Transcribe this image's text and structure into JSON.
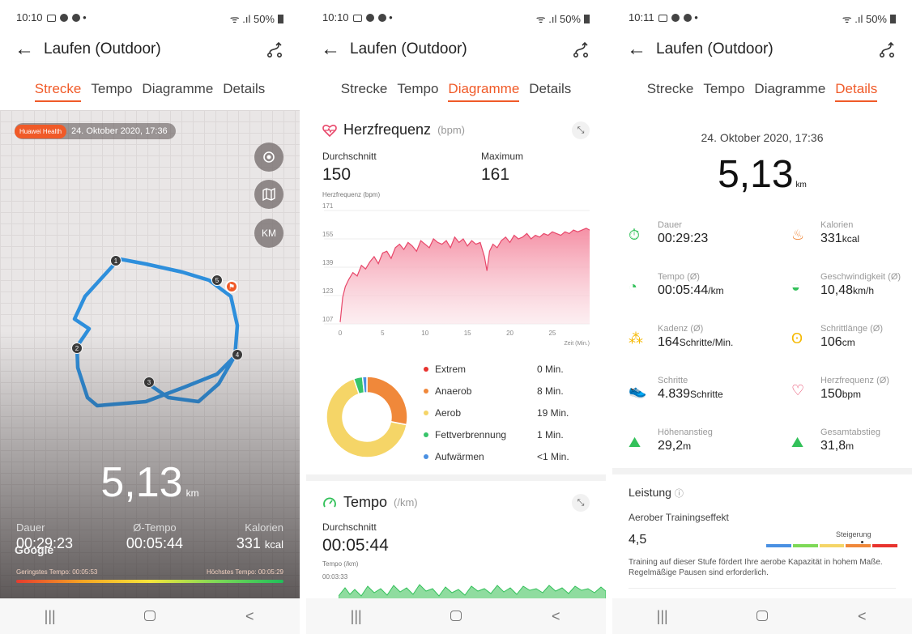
{
  "status": [
    {
      "time": "10:10",
      "battery": "50%"
    },
    {
      "time": "10:10",
      "battery": "50%"
    },
    {
      "time": "10:11",
      "battery": "50%"
    }
  ],
  "title": "Laufen (Outdoor)",
  "tabs": [
    "Strecke",
    "Tempo",
    "Diagramme",
    "Details"
  ],
  "colors": {
    "accent": "#f05a28",
    "route": "#2e8fdc",
    "hr_fill": "#f48aa0",
    "tempo_green": "#33c15a"
  },
  "map": {
    "badge": "Huawei Health",
    "date": "24. Oktober 2020, 17:36",
    "buttons": [
      "location-icon",
      "map-icon",
      "KM"
    ],
    "markers": [
      "1",
      "2",
      "3",
      "4",
      "5"
    ],
    "distance": "5,13",
    "distance_unit": "km",
    "stats": [
      {
        "label": "Dauer",
        "value": "00:29:23",
        "unit": ""
      },
      {
        "label": "Ø-Tempo",
        "value": "00:05:44",
        "unit": ""
      },
      {
        "label": "Kalorien",
        "value": "331",
        "unit": "kcal"
      }
    ],
    "google": "Google",
    "slowest": "Geringstes Tempo: 00:05:53",
    "fastest": "Höchstes Tempo: 00:05:29"
  },
  "hr": {
    "title": "Herzfrequenz",
    "unit": "(bpm)",
    "avg_label": "Durchschnitt",
    "avg": "150",
    "max_label": "Maximum",
    "max": "161",
    "axis_label": "Herzfrequenz (bpm)",
    "x_label": "Zeit (Min.)",
    "zones": [
      {
        "name": "Extrem",
        "value": "0 Min.",
        "color": "#e8332e",
        "minutes": 0
      },
      {
        "name": "Anaerob",
        "value": "8 Min.",
        "color": "#f0883a",
        "minutes": 8
      },
      {
        "name": "Aerob",
        "value": "19 Min.",
        "color": "#f5d567",
        "minutes": 19
      },
      {
        "name": "Fettverbrennung",
        "value": "1 Min.",
        "color": "#37c46a",
        "minutes": 1
      },
      {
        "name": "Aufwärmen",
        "value": "<1 Min.",
        "color": "#4a90e2",
        "minutes": 0.5
      }
    ]
  },
  "chart_data": {
    "type": "area",
    "title": "Herzfrequenz",
    "ylabel": "Herzfrequenz (bpm)",
    "xlabel": "Zeit (Min.)",
    "yticks": [
      171,
      155,
      139,
      123,
      107
    ],
    "xticks": [
      0,
      5,
      10,
      15,
      20,
      25
    ],
    "ylim": [
      107,
      171
    ],
    "xlim": [
      0,
      29.4
    ],
    "x": [
      0,
      0.3,
      0.6,
      1,
      1.5,
      2,
      2.5,
      3,
      3.5,
      4,
      4.5,
      5,
      5.5,
      6,
      6.5,
      7,
      7.5,
      8,
      8.5,
      9,
      9.5,
      10,
      10.5,
      11,
      11.5,
      12,
      12.5,
      13,
      13.5,
      14,
      14.5,
      15,
      15.5,
      16,
      16.5,
      17,
      17.3,
      17.6,
      18,
      18.5,
      19,
      19.5,
      20,
      20.5,
      21,
      21.5,
      22,
      22.5,
      23,
      23.5,
      24,
      24.5,
      25,
      25.5,
      26,
      26.5,
      27,
      27.5,
      28,
      28.5,
      29,
      29.4
    ],
    "y": [
      108,
      122,
      128,
      132,
      136,
      134,
      140,
      138,
      142,
      145,
      141,
      147,
      148,
      144,
      150,
      152,
      149,
      153,
      151,
      148,
      154,
      152,
      150,
      155,
      153,
      152,
      154,
      150,
      156,
      153,
      155,
      151,
      154,
      152,
      153,
      145,
      137,
      148,
      152,
      150,
      154,
      156,
      153,
      157,
      155,
      156,
      158,
      155,
      157,
      156,
      158,
      157,
      159,
      158,
      157,
      159,
      158,
      160,
      159,
      160,
      161,
      160
    ]
  },
  "tempo": {
    "title": "Tempo",
    "unit": "(/km)",
    "avg_label": "Durchschnitt",
    "avg": "00:05:44",
    "axis_label": "Tempo (/km)",
    "first_tick": "00:03:33"
  },
  "details": {
    "date": "24. Oktober 2020, 17:36",
    "distance": "5,13",
    "distance_unit": "km",
    "items": [
      {
        "label": "Dauer",
        "value": "00:29:23",
        "unit": "",
        "icon": "stopwatch-icon"
      },
      {
        "label": "Kalorien",
        "value": "331",
        "unit": "kcal",
        "icon": "flame-icon"
      },
      {
        "label": "Tempo (Ø)",
        "value": "00:05:44",
        "unit": "/km",
        "icon": "speedometer-icon"
      },
      {
        "label": "Geschwindigkeit (Ø)",
        "value": "10,48",
        "unit": "km/h",
        "icon": "gauge-icon"
      },
      {
        "label": "Kadenz (Ø)",
        "value": "164",
        "unit": "Schritte/Min.",
        "icon": "footprints-icon"
      },
      {
        "label": "Schrittlänge (Ø)",
        "value": "106",
        "unit": "cm",
        "icon": "stride-icon"
      },
      {
        "label": "Schritte",
        "value": "4.839",
        "unit": "Schritte",
        "icon": "shoe-icon"
      },
      {
        "label": "Herzfrequenz (Ø)",
        "value": "150",
        "unit": "bpm",
        "icon": "heart-rate-icon"
      },
      {
        "label": "Höhenanstieg",
        "value": "29,2",
        "unit": "m",
        "icon": "climb-icon"
      },
      {
        "label": "Gesamtabstieg",
        "value": "31,8",
        "unit": "m",
        "icon": "descent-icon"
      }
    ],
    "leistung": "Leistung",
    "aerob_label": "Aerober Trainingseffekt",
    "aerob_value": "4,5",
    "aerob_level": 0.72,
    "steigerung": "Steigerung",
    "effect_text": "Training auf dieser Stufe fördert Ihre aerobe Kapazität in hohem Maße. Regelmäßige Pausen sind erforderlich."
  }
}
